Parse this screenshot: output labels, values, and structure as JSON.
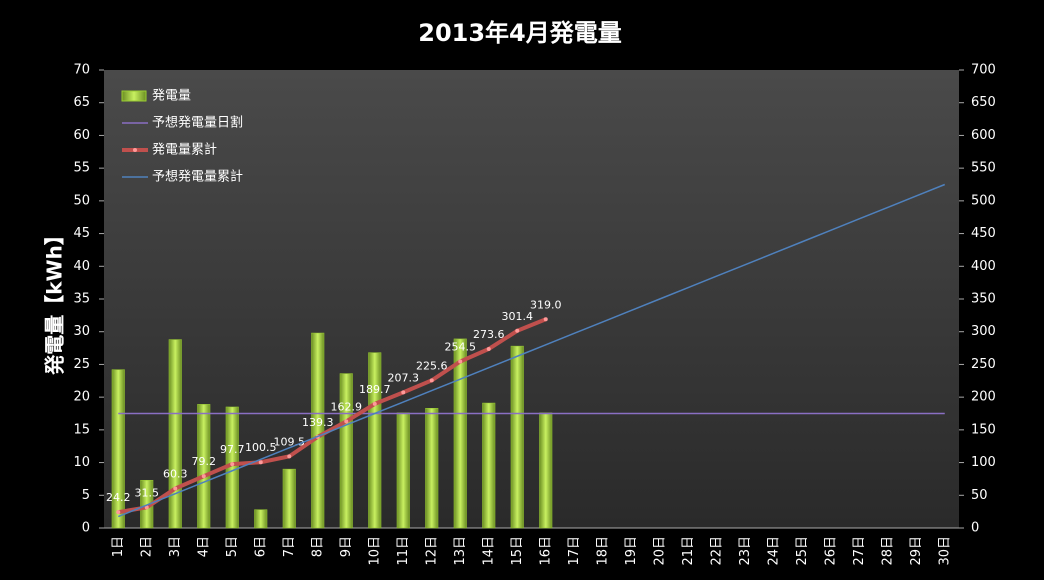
{
  "chart_data": {
    "type": "combo",
    "title": "2013年4月発電量",
    "y_label": "発電量【kWh】",
    "categories": [
      "1日",
      "2日",
      "3日",
      "4日",
      "5日",
      "6日",
      "7日",
      "8日",
      "9日",
      "10日",
      "11日",
      "12日",
      "13日",
      "14日",
      "15日",
      "16日",
      "17日",
      "18日",
      "19日",
      "20日",
      "21日",
      "22日",
      "23日",
      "24日",
      "25日",
      "26日",
      "27日",
      "28日",
      "29日",
      "30日"
    ],
    "ylim": [
      0,
      70
    ],
    "yticks": [
      0,
      5,
      10,
      15,
      20,
      25,
      30,
      35,
      40,
      45,
      50,
      55,
      60,
      65,
      70
    ],
    "y2lim": [
      0,
      700
    ],
    "y2ticks": [
      0,
      50,
      100,
      150,
      200,
      250,
      300,
      350,
      400,
      450,
      500,
      550,
      600,
      650,
      700
    ],
    "legend": "top-left",
    "series": [
      {
        "name": "発電量",
        "type": "bar",
        "color": "#9acd32",
        "values": [
          24.2,
          7.3,
          28.8,
          18.9,
          18.5,
          2.8,
          9.0,
          29.8,
          23.6,
          26.8,
          17.6,
          18.3,
          28.9,
          19.1,
          27.8,
          17.6,
          null,
          null,
          null,
          null,
          null,
          null,
          null,
          null,
          null,
          null,
          null,
          null,
          null,
          null
        ]
      },
      {
        "name": "予想発電量日割",
        "type": "line",
        "color": "#8a6fc4",
        "values": [
          17.5,
          17.5,
          17.5,
          17.5,
          17.5,
          17.5,
          17.5,
          17.5,
          17.5,
          17.5,
          17.5,
          17.5,
          17.5,
          17.5,
          17.5,
          17.5,
          17.5,
          17.5,
          17.5,
          17.5,
          17.5,
          17.5,
          17.5,
          17.5,
          17.5,
          17.5,
          17.5,
          17.5,
          17.5,
          17.5
        ]
      },
      {
        "name": "発電量累計",
        "type": "line",
        "axis": "y2",
        "color": "#c0504d",
        "markers": true,
        "values": [
          24.2,
          31.5,
          60.3,
          79.2,
          97.7,
          100.5,
          109.5,
          139.3,
          162.9,
          189.7,
          207.3,
          225.6,
          254.5,
          273.6,
          301.4,
          319,
          null,
          null,
          null,
          null,
          null,
          null,
          null,
          null,
          null,
          null,
          null,
          null,
          null,
          null
        ],
        "value_labels": [
          "24.2",
          "31.5",
          "60.3",
          "79.2",
          "97.7",
          "100.5",
          "109.5",
          "139.3",
          "162.9",
          "189.7",
          "207.3",
          "225.6",
          "254.5",
          "273.6",
          "301.4",
          "319.0",
          null,
          null,
          null,
          null,
          null,
          null,
          null,
          null,
          null,
          null,
          null,
          null,
          null,
          null
        ]
      },
      {
        "name": "予想発電量累計",
        "type": "line",
        "axis": "y2",
        "color": "#4f81bd",
        "values": [
          17.5,
          35,
          52.5,
          70,
          87.5,
          105,
          122.5,
          140,
          157.5,
          175,
          192.5,
          210,
          227.5,
          245,
          262.5,
          280,
          297.5,
          315,
          332.5,
          350,
          367.5,
          385,
          402.5,
          420,
          437.5,
          455,
          472.5,
          490,
          507.5,
          525
        ]
      }
    ]
  }
}
